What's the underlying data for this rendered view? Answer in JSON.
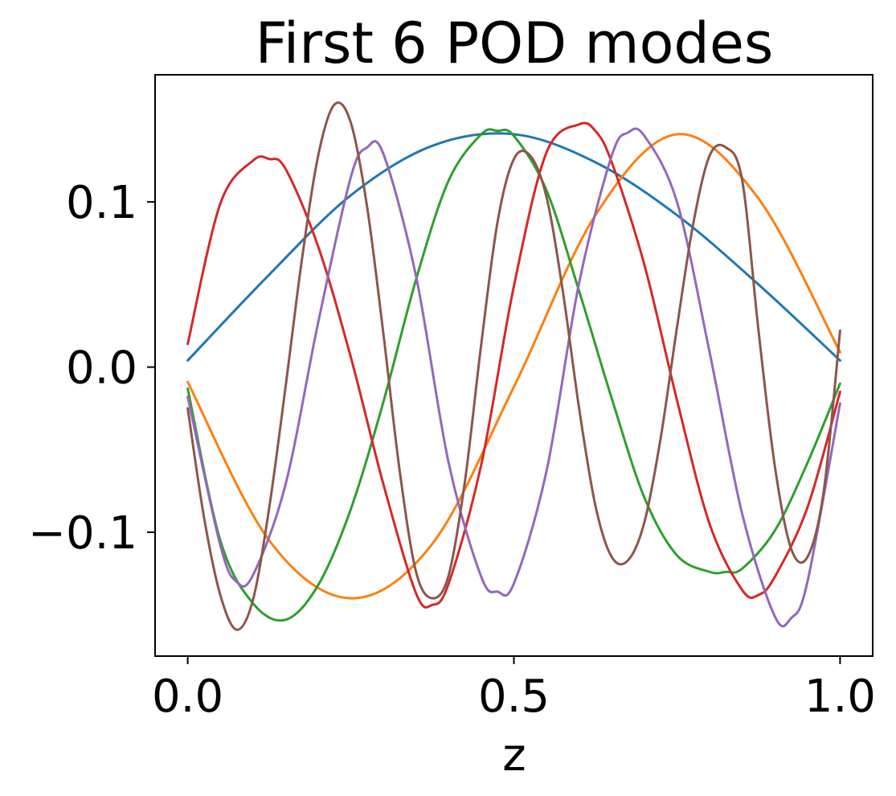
{
  "chart_data": {
    "type": "line",
    "title": "First 6 POD modes",
    "xlabel": "z",
    "ylabel": "",
    "xlim": [
      -0.05,
      1.05
    ],
    "ylim": [
      -0.175,
      0.177
    ],
    "xticks": [
      0.0,
      0.5,
      1.0
    ],
    "xtick_labels": [
      "0.0",
      "0.5",
      "1.0"
    ],
    "yticks": [
      0.1,
      0.0,
      -0.1
    ],
    "ytick_labels": [
      "0.1",
      "0.0",
      "−0.1"
    ],
    "grid": false,
    "legend": "none",
    "series": [
      {
        "color": "#1f77b4",
        "x": [
          0,
          0.125,
          0.25,
          0.375,
          0.5,
          0.625,
          0.75,
          0.875,
          1.0
        ],
        "y": [
          0.004,
          0.056,
          0.104,
          0.134,
          0.141,
          0.124,
          0.092,
          0.05,
          0.004
        ]
      },
      {
        "color": "#ff7f0e",
        "x": [
          0,
          0.125,
          0.25,
          0.375,
          0.5,
          0.625,
          0.75,
          0.875,
          1.0
        ],
        "y": [
          -0.009,
          -0.105,
          -0.14,
          -0.107,
          -0.012,
          0.092,
          0.141,
          0.102,
          0.009
        ]
      },
      {
        "color": "#2ca02c",
        "x": [
          0,
          0.05,
          0.1,
          0.15,
          0.2,
          0.25,
          0.3,
          0.35,
          0.4,
          0.45,
          0.475,
          0.5,
          0.55,
          0.6,
          0.65,
          0.7,
          0.75,
          0.8,
          0.825,
          0.85,
          0.9,
          0.95,
          1.0
        ],
        "y": [
          -0.013,
          -0.105,
          -0.143,
          -0.153,
          -0.132,
          -0.086,
          -0.021,
          0.053,
          0.113,
          0.141,
          0.143,
          0.14,
          0.107,
          0.046,
          -0.019,
          -0.079,
          -0.114,
          -0.124,
          -0.124,
          -0.122,
          -0.099,
          -0.058,
          -0.01
        ]
      },
      {
        "color": "#d62728",
        "x": [
          0,
          0.05,
          0.1,
          0.125,
          0.15,
          0.2,
          0.25,
          0.3,
          0.35,
          0.375,
          0.4,
          0.45,
          0.5,
          0.55,
          0.6,
          0.625,
          0.65,
          0.7,
          0.75,
          0.8,
          0.85,
          0.875,
          0.9,
          0.95,
          1.0
        ],
        "y": [
          0.014,
          0.099,
          0.125,
          0.126,
          0.12,
          0.073,
          0.006,
          -0.071,
          -0.137,
          -0.144,
          -0.131,
          -0.059,
          0.049,
          0.13,
          0.147,
          0.143,
          0.124,
          0.062,
          -0.02,
          -0.095,
          -0.135,
          -0.138,
          -0.127,
          -0.085,
          -0.015
        ]
      },
      {
        "color": "#9467bd",
        "x": [
          0,
          0.05,
          0.075,
          0.1,
          0.15,
          0.2,
          0.25,
          0.275,
          0.3,
          0.35,
          0.4,
          0.45,
          0.475,
          0.5,
          0.55,
          0.6,
          0.65,
          0.675,
          0.7,
          0.75,
          0.8,
          0.85,
          0.9,
          0.925,
          0.95,
          1.0
        ],
        "y": [
          -0.018,
          -0.108,
          -0.13,
          -0.126,
          -0.071,
          0.027,
          0.115,
          0.133,
          0.129,
          0.055,
          -0.058,
          -0.127,
          -0.136,
          -0.131,
          -0.063,
          0.051,
          0.128,
          0.142,
          0.14,
          0.1,
          0.009,
          -0.089,
          -0.151,
          -0.152,
          -0.13,
          -0.022
        ]
      },
      {
        "color": "#8c564b",
        "x": [
          0,
          0.025,
          0.05,
          0.075,
          0.1,
          0.125,
          0.15,
          0.175,
          0.2,
          0.225,
          0.25,
          0.275,
          0.3,
          0.325,
          0.35,
          0.375,
          0.4,
          0.425,
          0.45,
          0.475,
          0.5,
          0.525,
          0.55,
          0.575,
          0.6,
          0.625,
          0.65,
          0.675,
          0.7,
          0.725,
          0.75,
          0.775,
          0.8,
          0.825,
          0.85,
          0.875,
          0.9,
          0.925,
          0.95,
          0.975,
          1.0
        ],
        "y": [
          -0.025,
          -0.091,
          -0.138,
          -0.159,
          -0.141,
          -0.085,
          -0.012,
          0.065,
          0.128,
          0.159,
          0.148,
          0.097,
          0.02,
          -0.063,
          -0.124,
          -0.14,
          -0.126,
          -0.069,
          0.014,
          0.088,
          0.126,
          0.128,
          0.103,
          0.046,
          -0.025,
          -0.084,
          -0.115,
          -0.117,
          -0.094,
          -0.043,
          0.024,
          0.087,
          0.128,
          0.133,
          0.113,
          0.022,
          -0.06,
          -0.11,
          -0.115,
          -0.075,
          0.022
        ]
      }
    ]
  }
}
